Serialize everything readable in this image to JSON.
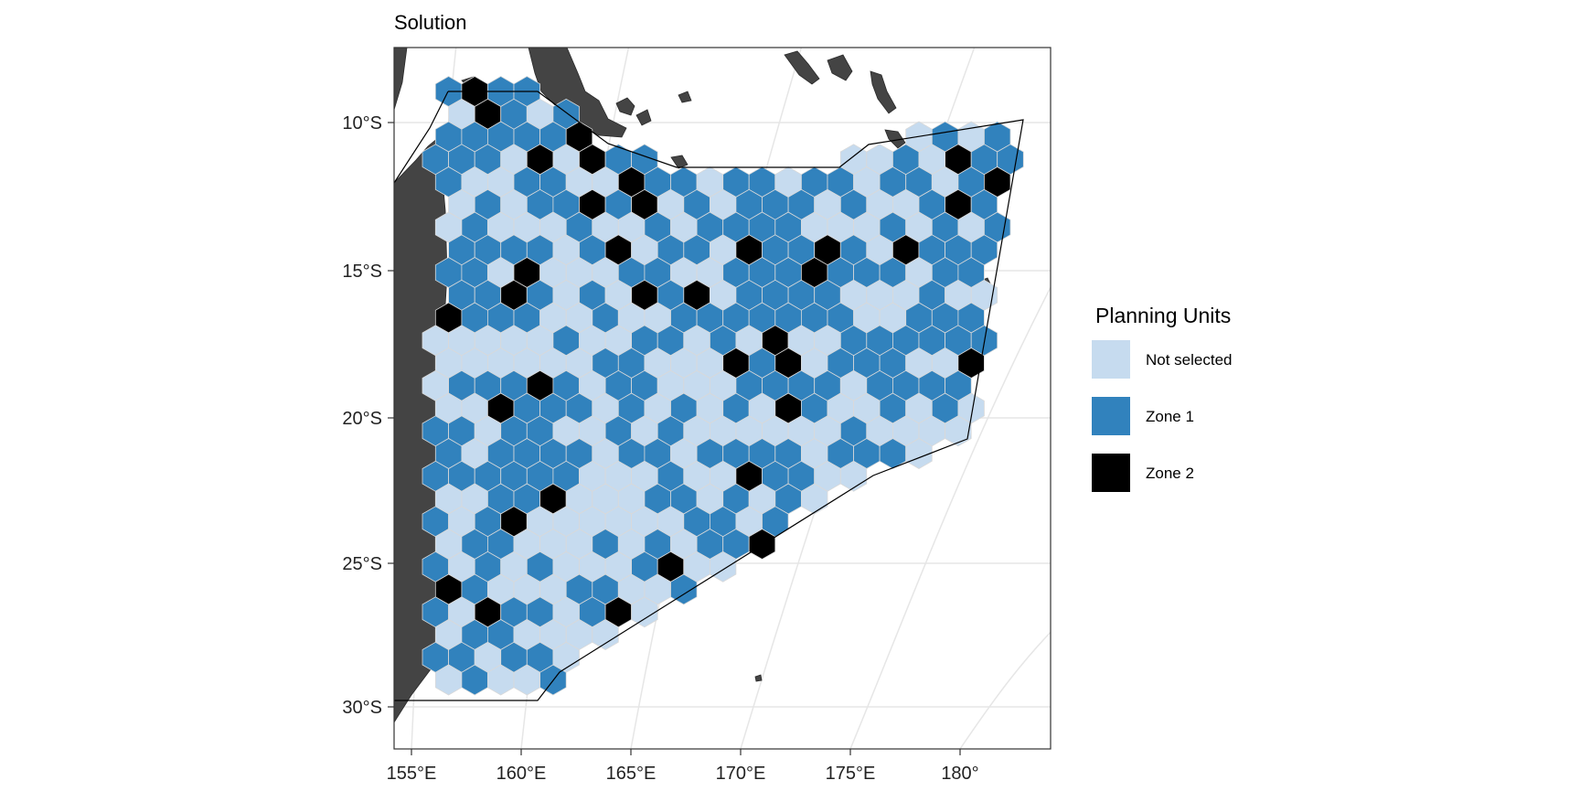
{
  "map": {
    "title": "Solution",
    "lat_ticks": [
      "10°S",
      "15°S",
      "20°S",
      "25°S",
      "30°S"
    ],
    "lon_ticks": [
      "155°E",
      "160°E",
      "165°E",
      "170°E",
      "175°E",
      "180°"
    ],
    "legend": {
      "title": "Planning Units",
      "items": [
        {
          "label": "Not selected",
          "color": "#c6dbef"
        },
        {
          "label": "Zone 1",
          "color": "#3182bd"
        },
        {
          "label": "Zone 2",
          "color": "#000000"
        }
      ]
    },
    "colors": {
      "not_selected": "#c6dbef",
      "zone1": "#3182bd",
      "zone2": "#000000",
      "land": "#444444",
      "graticule": "#e6e6e6",
      "hex_stroke": "#d9d9d9"
    }
  }
}
